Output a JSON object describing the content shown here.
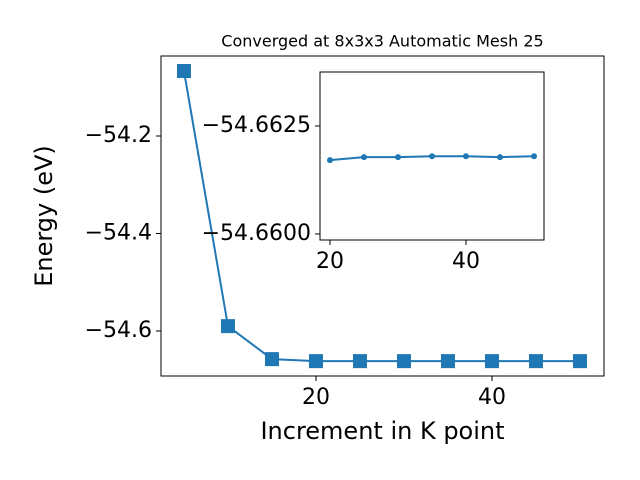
{
  "chart_data": [
    {
      "type": "line",
      "title": "Converged at 8x3x3 Automatic Mesh 25",
      "x_label": "Increment in K point",
      "y_label": "Energy (eV)",
      "x": [
        5,
        10,
        15,
        20,
        25,
        30,
        35,
        40,
        45,
        50
      ],
      "series": [
        {
          "color": "#1f77b4",
          "marker": "square",
          "values": [
            -54.0667,
            -54.59,
            -54.6577,
            -54.6618,
            -54.6618,
            -54.6618,
            -54.6618,
            -54.6618,
            -54.6618,
            -54.6618
          ]
        }
      ],
      "xlim": [
        2.39,
        52.73
      ],
      "ylim": [
        -54.6923,
        -54.0359
      ],
      "xticks": [
        20,
        40
      ],
      "yticks": [
        {
          "value": -54.2,
          "label": "−54.2"
        },
        {
          "value": -54.4,
          "label": "−54.4"
        },
        {
          "value": -54.6,
          "label": "−54.6"
        }
      ]
    },
    {
      "type": "line",
      "x": [
        20,
        25,
        30,
        35,
        40,
        45,
        50
      ],
      "series": [
        {
          "color": "#1f77b4",
          "marker": "circle",
          "values": [
            -54.66171,
            -54.66178,
            -54.66178,
            -54.6618,
            -54.6618,
            -54.66178,
            -54.6618
          ]
        }
      ],
      "xlim": [
        18.53,
        51.47
      ],
      "ylim": [
        -54.65986,
        -54.66375
      ],
      "xticks": [
        20,
        40
      ],
      "yticks": [
        {
          "value": -54.6625,
          "label": "−54.6625"
        },
        {
          "value": -54.66,
          "label": "−54.6600"
        }
      ]
    }
  ]
}
